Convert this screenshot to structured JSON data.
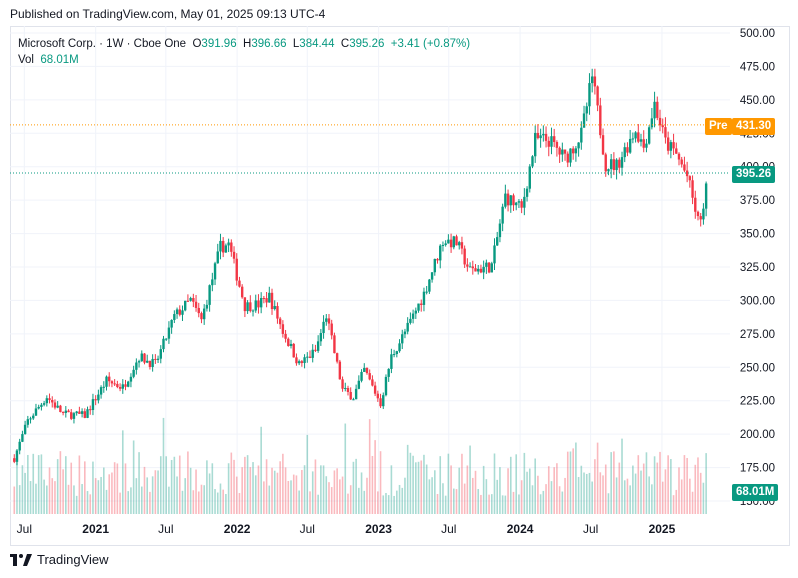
{
  "published_text": "Published on TradingView.com, May 01, 2025 09:13 UTC-4",
  "legend": {
    "symbol": "Microsoft Corp. · 1W · Cboe One",
    "o_label": "O",
    "o_val": "391.96",
    "h_label": "H",
    "h_val": "396.66",
    "l_label": "L",
    "l_val": "384.44",
    "c_label": "C",
    "c_val": "395.26",
    "change": "+3.41 (+0.87%)",
    "vol_label": "Vol",
    "vol_val": "68.01M"
  },
  "price_badges": {
    "pre_label": "Pre",
    "pre_val": "431.30",
    "last_val": "395.26",
    "vol_val": "68.01M"
  },
  "footer": {
    "brand": "TradingView",
    "logo_text": "17"
  },
  "colors": {
    "up": "#089981",
    "down": "#f23645",
    "pre": "#ff9800",
    "grid": "#f0f3fa"
  },
  "chart_data": {
    "type": "candlestick",
    "y_ticks": [
      "500.00",
      "475.00",
      "450.00",
      "425.00",
      "400.00",
      "375.00",
      "350.00",
      "325.00",
      "300.00",
      "275.00",
      "250.00",
      "225.00",
      "200.00",
      "175.00",
      "150.00"
    ],
    "ylim": [
      150,
      500
    ],
    "x_ticks": [
      "Jul",
      "2021",
      "Jul",
      "2022",
      "Jul",
      "2023",
      "Jul",
      "2024",
      "Jul",
      "2025"
    ],
    "pre_price": 431.3,
    "last_price": 395.26,
    "close_path": [
      [
        "2020-06-05",
        182
      ],
      [
        "2020-07-10",
        210
      ],
      [
        "2020-08-28",
        228
      ],
      [
        "2020-10-09",
        215
      ],
      [
        "2020-12-04",
        214
      ],
      [
        "2021-01-29",
        240
      ],
      [
        "2021-03-12",
        235
      ],
      [
        "2021-04-23",
        258
      ],
      [
        "2021-06-04",
        252
      ],
      [
        "2021-07-23",
        288
      ],
      [
        "2021-09-03",
        300
      ],
      [
        "2021-10-01",
        285
      ],
      [
        "2021-11-19",
        340
      ],
      [
        "2021-12-10",
        342
      ],
      [
        "2022-01-21",
        296
      ],
      [
        "2022-02-25",
        297
      ],
      [
        "2022-03-25",
        303
      ],
      [
        "2022-04-29",
        277
      ],
      [
        "2022-06-10",
        252
      ],
      [
        "2022-07-22",
        262
      ],
      [
        "2022-08-19",
        289
      ],
      [
        "2022-09-30",
        233
      ],
      [
        "2022-10-28",
        228
      ],
      [
        "2022-11-25",
        248
      ],
      [
        "2023-01-06",
        223
      ],
      [
        "2023-02-03",
        258
      ],
      [
        "2023-03-17",
        280
      ],
      [
        "2023-04-28",
        305
      ],
      [
        "2023-06-16",
        345
      ],
      [
        "2023-07-21",
        343
      ],
      [
        "2023-08-25",
        322
      ],
      [
        "2023-10-20",
        326
      ],
      [
        "2023-11-24",
        378
      ],
      [
        "2024-01-05",
        368
      ],
      [
        "2024-02-09",
        420
      ],
      [
        "2024-03-15",
        420
      ],
      [
        "2024-04-26",
        406
      ],
      [
        "2024-06-07",
        424
      ],
      [
        "2024-07-05",
        467
      ],
      [
        "2024-08-09",
        402
      ],
      [
        "2024-09-06",
        401
      ],
      [
        "2024-10-25",
        428
      ],
      [
        "2024-11-15",
        415
      ],
      [
        "2024-12-13",
        447
      ],
      [
        "2025-01-10",
        418
      ],
      [
        "2025-02-07",
        409
      ],
      [
        "2025-03-07",
        393
      ],
      [
        "2025-04-04",
        359
      ],
      [
        "2025-04-18",
        367
      ],
      [
        "2025-05-01",
        395.26
      ]
    ]
  }
}
